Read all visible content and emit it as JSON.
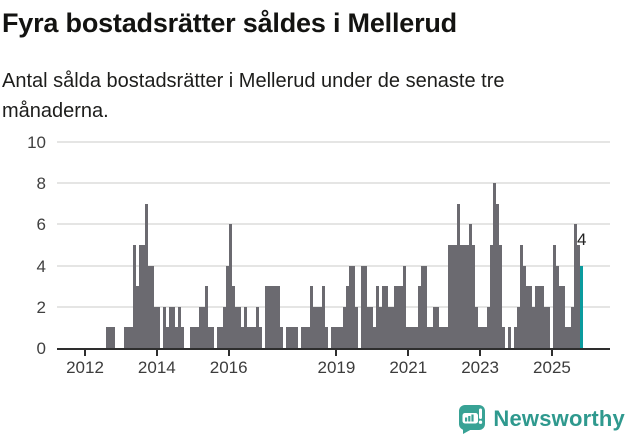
{
  "header": {
    "title": "Fyra bostadsrätter såldes i Mellerud",
    "subtitle": "Antal sålda bostadsrätter i Mellerud under de senaste tre månaderna."
  },
  "chart_data": {
    "type": "bar",
    "title": "Fyra bostadsrätter såldes i Mellerud",
    "subtitle": "Antal sålda bostadsrätter i Mellerud under de senaste tre månaderna.",
    "unit": "antal sålda bostadsrätter (rullande tre månader)",
    "start_month": "2012-08",
    "end_month": "2025-10",
    "values": [
      1,
      1,
      1,
      0,
      0,
      0,
      1,
      1,
      1,
      5,
      3,
      5,
      5,
      7,
      4,
      4,
      2,
      2,
      0,
      2,
      1,
      2,
      2,
      1,
      2,
      1,
      0,
      0,
      1,
      1,
      1,
      2,
      2,
      3,
      1,
      1,
      0,
      1,
      1,
      2,
      4,
      6,
      3,
      2,
      2,
      1,
      2,
      1,
      1,
      1,
      2,
      1,
      0,
      3,
      3,
      3,
      3,
      3,
      1,
      0,
      1,
      1,
      1,
      1,
      0,
      1,
      1,
      1,
      3,
      2,
      2,
      2,
      3,
      1,
      0,
      1,
      1,
      1,
      1,
      2,
      3,
      4,
      4,
      2,
      0,
      4,
      4,
      2,
      2,
      1,
      3,
      2,
      3,
      3,
      2,
      2,
      3,
      3,
      3,
      4,
      1,
      1,
      1,
      1,
      3,
      4,
      4,
      1,
      1,
      2,
      2,
      1,
      1,
      1,
      5,
      5,
      5,
      7,
      5,
      5,
      5,
      6,
      5,
      2,
      1,
      1,
      1,
      2,
      5,
      8,
      7,
      5,
      1,
      0,
      1,
      0,
      1,
      2,
      5,
      4,
      3,
      3,
      2,
      3,
      3,
      3,
      2,
      2,
      0,
      5,
      4,
      3,
      3,
      1,
      1,
      2,
      6,
      5,
      4
    ],
    "highlight_last": true,
    "last_value_label": "4",
    "y_ticks": [
      0,
      2,
      4,
      6,
      8,
      10
    ],
    "ylim": [
      0,
      10
    ],
    "x_ticks": [
      2012,
      2014,
      2016,
      2019,
      2021,
      2023,
      2025
    ],
    "grid": true,
    "legend": "none",
    "bar_color": "#6b6a70",
    "highlight_color": "#0b9b9e"
  },
  "footer": {
    "brand": "Newsworthy",
    "brand_color": "#2f998e",
    "logo_icon": "newsworthy-chart-bubble-icon"
  }
}
